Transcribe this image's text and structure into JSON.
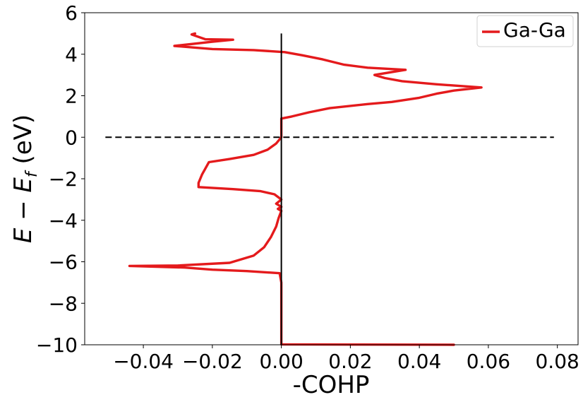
{
  "chart_data": {
    "type": "line",
    "title": "",
    "xlabel": "-COHP",
    "ylabel": "E − E_f (eV)",
    "ylabel_parts": {
      "e": "E",
      "minus": " − ",
      "ef": "E",
      "f": "f",
      "unit": " (eV)"
    },
    "xlim": [
      -0.057,
      0.086
    ],
    "ylim": [
      -10,
      6
    ],
    "x_ticks": [
      -0.04,
      -0.02,
      0.0,
      0.02,
      0.04,
      0.06,
      0.08
    ],
    "x_tick_labels": [
      "−0.04",
      "−0.02",
      "0.00",
      "0.02",
      "0.04",
      "0.06",
      "0.08"
    ],
    "y_ticks": [
      6,
      4,
      2,
      0,
      -2,
      -4,
      -6,
      -8,
      -10
    ],
    "y_tick_labels": [
      "6",
      "4",
      "2",
      "0",
      "−2",
      "−4",
      "−6",
      "−8",
      "−10"
    ],
    "grid": false,
    "legend": {
      "position": "top-right",
      "entries": [
        "Ga-Ga"
      ]
    },
    "fermi_line": {
      "style": "dashed",
      "y": 0,
      "x_range": [
        -0.051,
        0.079
      ],
      "color": "#000000"
    },
    "zero_line": {
      "style": "solid",
      "x": 0,
      "y_range": [
        -10,
        5
      ],
      "color": "#000000"
    },
    "series": [
      {
        "name": "Ga-Ga",
        "color": "#e41a1c",
        "points": [
          [
            0.05,
            -10.0
          ],
          [
            0.02,
            -9.99
          ],
          [
            0.0,
            -9.98
          ],
          [
            0.0,
            -9.0
          ],
          [
            0.0,
            -8.0
          ],
          [
            0.0,
            -7.0
          ],
          [
            -0.0005,
            -6.55
          ],
          [
            -0.01,
            -6.45
          ],
          [
            -0.02,
            -6.38
          ],
          [
            -0.028,
            -6.28
          ],
          [
            -0.044,
            -6.2
          ],
          [
            -0.03,
            -6.18
          ],
          [
            -0.015,
            -6.05
          ],
          [
            -0.008,
            -5.7
          ],
          [
            -0.005,
            -5.3
          ],
          [
            -0.003,
            -4.8
          ],
          [
            -0.0015,
            -4.3
          ],
          [
            -0.0008,
            -3.9
          ],
          [
            0.0,
            -3.55
          ],
          [
            -0.001,
            -3.45
          ],
          [
            0.0,
            -3.35
          ],
          [
            -0.0015,
            -3.2
          ],
          [
            0.0,
            -3.0
          ],
          [
            -0.002,
            -2.75
          ],
          [
            -0.006,
            -2.6
          ],
          [
            -0.014,
            -2.5
          ],
          [
            -0.024,
            -2.4
          ],
          [
            -0.024,
            -2.2
          ],
          [
            -0.023,
            -1.8
          ],
          [
            -0.022,
            -1.5
          ],
          [
            -0.021,
            -1.2
          ],
          [
            -0.015,
            -1.05
          ],
          [
            -0.008,
            -0.85
          ],
          [
            -0.004,
            -0.6
          ],
          [
            -0.0015,
            -0.3
          ],
          [
            0.0,
            0.0
          ],
          [
            0.0,
            0.5
          ],
          [
            0.0,
            0.9
          ],
          [
            0.003,
            1.0
          ],
          [
            0.008,
            1.2
          ],
          [
            0.014,
            1.4
          ],
          [
            0.025,
            1.6
          ],
          [
            0.032,
            1.7
          ],
          [
            0.04,
            1.9
          ],
          [
            0.045,
            2.1
          ],
          [
            0.05,
            2.25
          ],
          [
            0.058,
            2.4
          ],
          [
            0.045,
            2.55
          ],
          [
            0.035,
            2.7
          ],
          [
            0.03,
            2.85
          ],
          [
            0.027,
            3.0
          ],
          [
            0.036,
            3.25
          ],
          [
            0.025,
            3.35
          ],
          [
            0.018,
            3.5
          ],
          [
            0.012,
            3.75
          ],
          [
            0.006,
            3.95
          ],
          [
            0.001,
            4.1
          ],
          [
            -0.008,
            4.2
          ],
          [
            -0.02,
            4.25
          ],
          [
            -0.031,
            4.4
          ],
          [
            -0.02,
            4.6
          ],
          [
            -0.014,
            4.7
          ],
          [
            -0.022,
            4.72
          ],
          [
            -0.026,
            4.95
          ],
          [
            -0.025,
            5.0
          ]
        ]
      }
    ]
  }
}
